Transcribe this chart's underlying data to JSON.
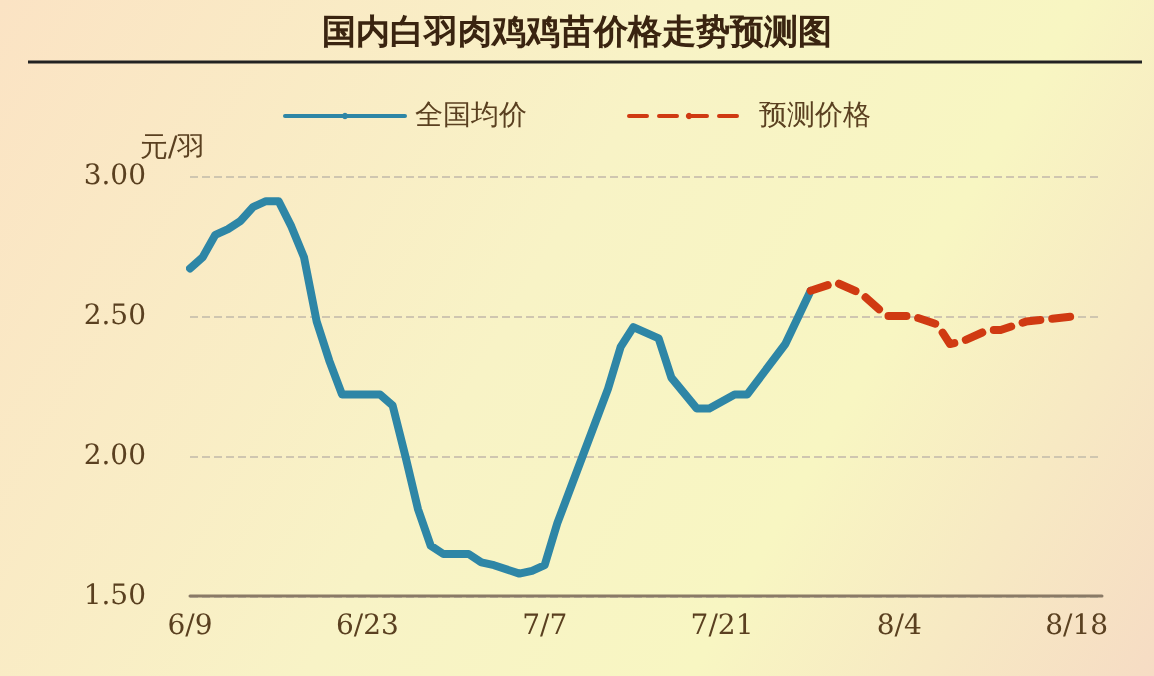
{
  "chart_data": {
    "type": "line",
    "title": "国内白羽肉鸡鸡苗价格走势预测图",
    "ylabel": "元/羽",
    "xlim": [
      "--06-09",
      "--08-20"
    ],
    "xticks": [
      {
        "value": "--06-09",
        "label": "6/9"
      },
      {
        "value": "--06-23",
        "label": "6/23"
      },
      {
        "value": "--07-07",
        "label": "7/7"
      },
      {
        "value": "--07-21",
        "label": "7/21"
      },
      {
        "value": "--08-04",
        "label": "8/4"
      },
      {
        "value": "--08-18",
        "label": "8/18"
      }
    ],
    "ylim": [
      1.5,
      3.0
    ],
    "yticks": [
      {
        "value": 1.5,
        "label": "1.50"
      },
      {
        "value": 2.0,
        "label": "2.00"
      },
      {
        "value": 2.5,
        "label": "2.50"
      },
      {
        "value": 3.0,
        "label": "3.00"
      }
    ],
    "grid": "y",
    "legend": "top",
    "marker": "none",
    "series": [
      {
        "name": "全国均价",
        "color": "#2e86a6",
        "line_style": "solid",
        "x": [
          "--06-09",
          "--06-10",
          "--06-11",
          "--06-12",
          "--06-13",
          "--06-14",
          "--06-15",
          "--06-16",
          "--06-17",
          "--06-18",
          "--06-19",
          "--06-20",
          "--06-21",
          "--06-22",
          "--06-24",
          "--06-25",
          "--06-26",
          "--06-27",
          "--06-28",
          "--06-29",
          "--07-01",
          "--07-02",
          "--07-03",
          "--07-05",
          "--07-06",
          "--07-07",
          "--07-08",
          "--07-10",
          "--07-12",
          "--07-13",
          "--07-14",
          "--07-16",
          "--07-17",
          "--07-19",
          "--07-20",
          "--07-22",
          "--07-23",
          "--07-26",
          "--07-28"
        ],
        "values": [
          2.67,
          2.71,
          2.79,
          2.81,
          2.84,
          2.89,
          2.91,
          2.91,
          2.82,
          2.71,
          2.48,
          2.34,
          2.22,
          2.22,
          2.22,
          2.18,
          2.0,
          1.81,
          1.68,
          1.65,
          1.65,
          1.62,
          1.61,
          1.58,
          1.59,
          1.61,
          1.76,
          2.0,
          2.24,
          2.39,
          2.46,
          2.42,
          2.28,
          2.17,
          2.17,
          2.22,
          2.22,
          2.4,
          2.59
        ]
      },
      {
        "name": "预测价格",
        "color": "#d03a12",
        "line_style": "dashed",
        "x": [
          "--07-28",
          "--07-30",
          "--08-01",
          "--08-03",
          "--08-05",
          "--08-07",
          "--08-08",
          "--08-09",
          "--08-11",
          "--08-12",
          "--08-14",
          "--08-18"
        ],
        "values": [
          2.59,
          2.62,
          2.58,
          2.5,
          2.5,
          2.47,
          2.4,
          2.41,
          2.45,
          2.45,
          2.48,
          2.5
        ]
      }
    ]
  }
}
